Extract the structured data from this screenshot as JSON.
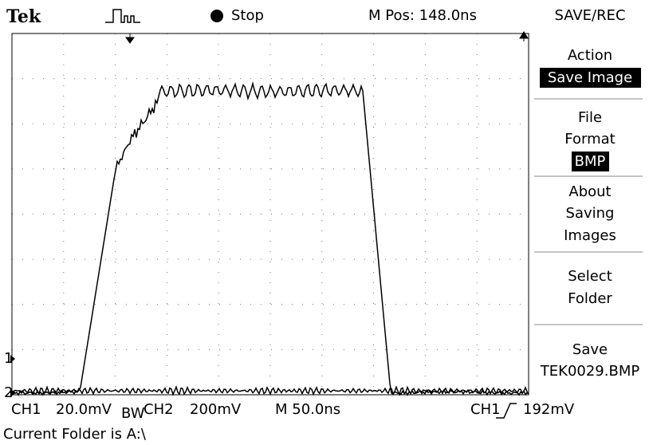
{
  "header": {
    "brand": "Tek",
    "status": "Stop",
    "position": "M Pos: 148.0ns"
  },
  "menu": {
    "title": "SAVE/REC",
    "items": [
      {
        "label": [
          "Action"
        ],
        "value": "Save Image"
      },
      {
        "label": [
          "File",
          "Format"
        ],
        "value": "BMP"
      },
      {
        "label": [
          "About",
          "Saving",
          "Images"
        ]
      },
      {
        "label": [
          "Select",
          "Folder"
        ]
      },
      {
        "label": [
          "Save"
        ],
        "value": "TEK0029.BMP"
      }
    ]
  },
  "markers": [
    "1",
    "2"
  ],
  "status_bar": {
    "ch1": "CH1",
    "ch1_scale": "20.0mV",
    "bw": "BW",
    "ch2": "CH2",
    "ch2_scale": "200mV",
    "timebase": "M 50.0ns",
    "trigger_source": "CH1",
    "trigger_level": "192mV"
  },
  "footer": "Current Folder is A:\\"
}
